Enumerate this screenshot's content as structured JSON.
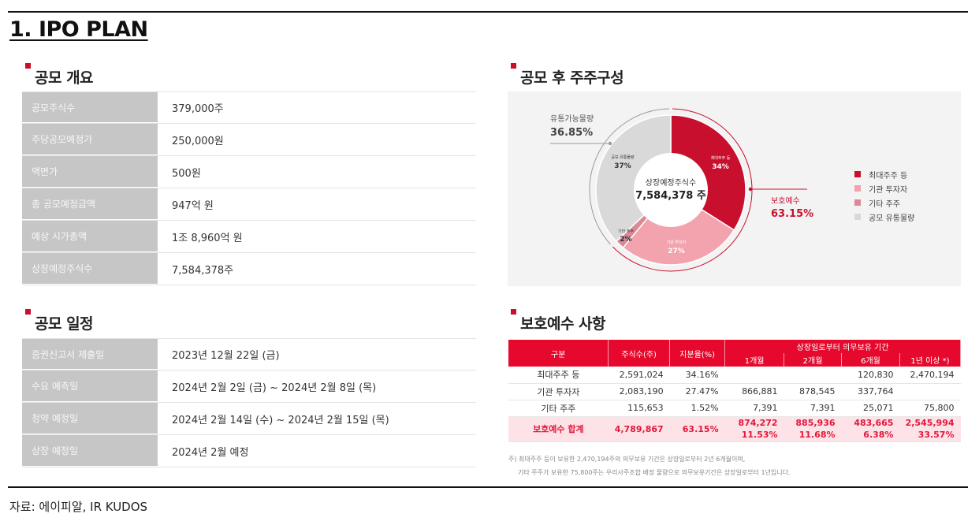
{
  "page_title": "1. IPO PLAN",
  "offering": {
    "title": "공모 개요",
    "rows": [
      {
        "label": "공모주식수",
        "value": "379,000주"
      },
      {
        "label": "주당공모예정가",
        "value": "250,000원"
      },
      {
        "label": "액면가",
        "value": "500원"
      },
      {
        "label": "총 공모예정금액",
        "value": "947억 원"
      },
      {
        "label": "예상 시가총액",
        "value": "1조 8,960억 원"
      },
      {
        "label": "상장예정주식수",
        "value": "7,584,378주"
      }
    ]
  },
  "schedule": {
    "title": "공모 일정",
    "rows": [
      {
        "label": "증권신고서 제출일",
        "value": "2023년 12월 22일 (금)"
      },
      {
        "label": "수요 예측일",
        "value": "2024년 2월 2일 (금) ~ 2024년 2월 8일 (목)"
      },
      {
        "label": "청약 예정일",
        "value": "2024년 2월 14일 (수) ~ 2024년 2월 15일 (목)"
      },
      {
        "label": "상장 예정일",
        "value": "2024년 2월 예정"
      }
    ]
  },
  "shareholders": {
    "title": "공모 후 주주구성",
    "center_label": "상장예정주식수",
    "center_value": "7,584,378 주",
    "float_label": "유통가능물량",
    "float_value": "36.85%",
    "protect_label": "보호예수",
    "protect_value": "63.15%",
    "slice_labels": [
      {
        "name": "최대주주 등",
        "value": "34%"
      },
      {
        "name": "기관 투자자",
        "value": "27%"
      },
      {
        "name": "기타 주주",
        "value": "2%"
      },
      {
        "name": "공모 유통물량",
        "value": "37%"
      }
    ],
    "legend": [
      {
        "label": "최대주주 등",
        "color": "#c8102e"
      },
      {
        "label": "기관 투자자",
        "color": "#f2a3ae"
      },
      {
        "label": "기타 주주",
        "color": "#d98a96"
      },
      {
        "label": "공모 유통물량",
        "color": "#d9d9d9"
      }
    ]
  },
  "chart_data": {
    "type": "pie",
    "categories": [
      "최대주주 등",
      "기관 투자자",
      "기타 주주",
      "공모 유통물량"
    ],
    "values": [
      34,
      27,
      2,
      37
    ],
    "colors": [
      "#c8102e",
      "#f2a3ae",
      "#d98a96",
      "#d9d9d9"
    ]
  },
  "lockup": {
    "title": "보호예수 사항",
    "headers": {
      "category": "구분",
      "shares": "주식수(주)",
      "ratio": "지분율(%)",
      "period_group": "상장일로부터 의무보유 기간",
      "periods": [
        "1개월",
        "2개월",
        "6개월",
        "1년 이상 *)"
      ]
    },
    "rows": [
      {
        "category": "최대주주 등",
        "shares": "2,591,024",
        "ratio": "34.16%",
        "p1": "",
        "p2": "",
        "p6": "120,830",
        "p12": "2,470,194"
      },
      {
        "category": "기관 투자자",
        "shares": "2,083,190",
        "ratio": "27.47%",
        "p1": "866,881",
        "p2": "878,545",
        "p6": "337,764",
        "p12": ""
      },
      {
        "category": "기타 주주",
        "shares": "115,653",
        "ratio": "1.52%",
        "p1": "7,391",
        "p2": "7,391",
        "p6": "25,071",
        "p12": "75,800"
      }
    ],
    "total": {
      "category": "보호예수 합계",
      "shares": "4,789,867",
      "ratio": "63.15%",
      "p1": "874,272",
      "p2": "885,936",
      "p6": "483,665",
      "p12": "2,545,994",
      "p1_pct": "11.53%",
      "p2_pct": "11.68%",
      "p6_pct": "6.38%",
      "p12_pct": "33.57%"
    },
    "notes": [
      "주) 최대주주 등이 보유한 2,470,194주의 의무보유 기간은 상장일로부터 2년 6개월이며,",
      "기타 주주가 보유한 75,800주는 우리사주조합 배정 물량으로 의무보유기간은 상장일로부터 1년입니다."
    ]
  },
  "source": "자료: 에이피알, IR KUDOS"
}
